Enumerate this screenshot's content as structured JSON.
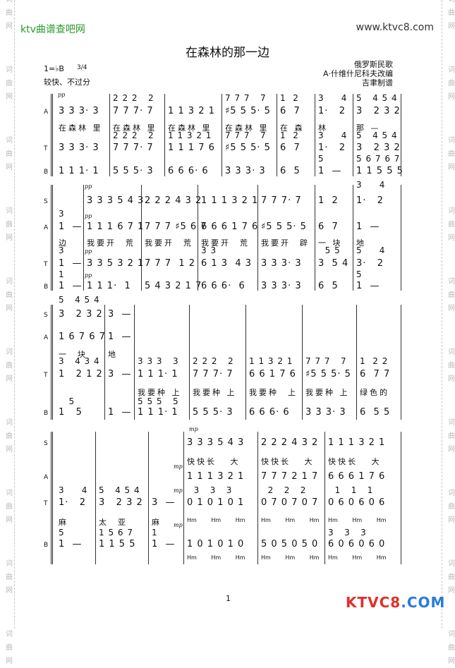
{
  "header": {
    "site_name": "ktv曲谱查吧网",
    "site_url": "www.ktvc8.com",
    "watermark": "词曲网"
  },
  "song": {
    "title": "在森林的那一边",
    "key": "1=♭B",
    "time_sig": "3/4",
    "tempo": "较快、不过分",
    "origin": "俄罗斯民歌",
    "arranger": "A·什维什尼科夫改编",
    "engraver": "吉聿制谱"
  },
  "footer": {
    "page_number": "1",
    "logo": "KTVC8.COM"
  },
  "colors": {
    "site_name": "#2a9a2a",
    "logo_red": "#e0302a",
    "logo_blue": "#2a7ad8"
  },
  "systems": [
    {
      "dynamics": [
        "pp"
      ],
      "rows": [
        {
          "label": "",
          "kind": "sm",
          "measures": [
            "",
            "2 2 2   2",
            "",
            "7 7 7   7",
            "1  2",
            "3     4",
            "5   4 5 4"
          ]
        },
        {
          "label": "A",
          "kind": "note",
          "measures": [
            "3 3 3· 3",
            "7 7 7· 7",
            "1 1 3 2 1",
            "♯5 5 5· 5",
            "6  7",
            "1·   2",
            "3   2 3 2"
          ]
        },
        {
          "label": "",
          "kind": "lyr",
          "measures": [
            "在森林 里",
            "在森林 里",
            "在森林 里",
            "在森林 里",
            "在 森",
            "林",
            "那 —"
          ]
        },
        {
          "label": "",
          "kind": "sm",
          "measures": [
            "",
            "2 2 2   2",
            "1 1 3 2 1",
            "7 7 7   7",
            "1  2",
            "3     4",
            "5   4 5 4"
          ]
        },
        {
          "label": "T",
          "kind": "note",
          "measures": [
            "3 3 3· 3",
            "7 7 7· 7",
            "1 1 1 7 6",
            "♯5 5 5· 5",
            "6  7",
            "1·   2",
            "3   2 3 2"
          ]
        },
        {
          "label": "",
          "kind": "sm",
          "measures": [
            "",
            "",
            "",
            "",
            "",
            "5",
            "5 6 7 6 7"
          ]
        },
        {
          "label": "B",
          "kind": "note",
          "measures": [
            "1 1 1· 1",
            "5 5 5· 3",
            "6 6 6· 6",
            "3 3 3· 3",
            "6  5",
            "1  —",
            "1 1 5 5 5"
          ]
        }
      ]
    },
    {
      "dynamics": [
        "pp",
        "pp",
        "pp",
        "pp"
      ],
      "rows": [
        {
          "label": "",
          "kind": "sm",
          "measures": [
            "",
            "",
            "",
            "",
            "",
            "",
            "3     4"
          ]
        },
        {
          "label": "S",
          "kind": "note",
          "measures": [
            "",
            "3 3 3 5 4 3",
            "2 2 2 4 3 2",
            "1 1 1 3 2 1",
            "7 7 7· 7",
            "1  2",
            "1·   2"
          ]
        },
        {
          "label": "",
          "kind": "sm",
          "measures": [
            "3",
            "",
            "",
            "",
            "",
            "",
            ""
          ]
        },
        {
          "label": "A",
          "kind": "note",
          "measures": [
            "1  —",
            "1 1 1 6 7 1",
            "7 7 7 ♯5 6 7",
            "6 6 6 1 7 6",
            "♯5 5 5· 5",
            "6  7",
            "1  —"
          ]
        },
        {
          "label": "",
          "kind": "lyr",
          "measures": [
            "边",
            "我要开  荒",
            "我要开  荒",
            "我要开  荒",
            "我要开  辟",
            "一 块",
            "地"
          ]
        },
        {
          "label": "",
          "kind": "sm",
          "measures": [
            "3",
            "",
            "",
            "3 3",
            "",
            "  5 5",
            "5     4"
          ]
        },
        {
          "label": "T",
          "kind": "note",
          "measures": [
            "1  —",
            "3 3 5 3 2 1",
            "7 7 7  1 2",
            "6 1 3  4 3",
            "3 3 3· 3",
            "3  5 4",
            "3·   2"
          ]
        },
        {
          "label": "",
          "kind": "sm",
          "measures": [
            "1",
            "",
            "",
            "",
            "",
            "",
            "5"
          ]
        },
        {
          "label": "B",
          "kind": "note",
          "measures": [
            "1  —",
            "1 1 1·  1",
            "5 4 3 2 1 7",
            "6 6 6·  6",
            "3 3 3· 3",
            "6  5",
            "1  —"
          ]
        }
      ]
    },
    {
      "dynamics": [],
      "rows": [
        {
          "label": "",
          "kind": "sm",
          "measures": [
            "5   4 5 4",
            "",
            "",
            "",
            "",
            "",
            ""
          ]
        },
        {
          "label": "S",
          "kind": "note",
          "measures": [
            "3   2 3 2",
            "3  —",
            "",
            "",
            "",
            "",
            ""
          ]
        },
        {
          "label": "A",
          "kind": "note",
          "measures": [
            "1 6 7 6 7",
            "1  —",
            "",
            "",
            "",
            "",
            ""
          ]
        },
        {
          "label": "",
          "kind": "lyr",
          "measures": [
            "一  块",
            "地",
            "",
            "",
            "",
            "",
            ""
          ]
        },
        {
          "label": "",
          "kind": "sm",
          "measures": [
            "3   4 3 4",
            "",
            "3 3 3   3",
            "2 2 2   2",
            "1 1 3 2 1",
            "7 7 7   7",
            "1  2 2"
          ]
        },
        {
          "label": "T",
          "kind": "note",
          "measures": [
            "1   2 1 2",
            "3  —",
            "1 1 1· 1",
            "7 7 7· 7",
            "6 6 1 7 6",
            "♯5 5 5· 5",
            "6  7 7"
          ]
        },
        {
          "label": "",
          "kind": "lyr",
          "measures": [
            "",
            "",
            "我要种 上",
            "我要种 上",
            "我要种  上",
            "我要种 上",
            "绿色的"
          ]
        },
        {
          "label": "",
          "kind": "sm",
          "measures": [
            "   5",
            "",
            "5 5 5   5",
            "",
            "",
            "",
            ""
          ]
        },
        {
          "label": "B",
          "kind": "note",
          "measures": [
            "1   5",
            "1  —",
            "1 1 1· 1",
            "5 5 5· 3",
            "6 6 6· 6",
            "3 3 3· 3",
            "6  5 5"
          ]
        }
      ]
    },
    {
      "dynamics": [
        "mp",
        "mp",
        "mp",
        "mp"
      ],
      "rows": [
        {
          "label": "S",
          "kind": "note",
          "measures": [
            "",
            "",
            "",
            "3 3 3 5 4 3",
            "2 2 2 4 3 2",
            "1 1 1 3 2 1"
          ]
        },
        {
          "label": "",
          "kind": "lyr",
          "measures": [
            "",
            "",
            "",
            "快快长   大",
            "快快长   大",
            "快快长   大"
          ]
        },
        {
          "label": "A",
          "kind": "note",
          "measures": [
            "",
            "",
            "",
            "1 1 1 3 2 1",
            "7 7 7 2 1 7",
            "6 6 6 1 7 6"
          ]
        },
        {
          "label": "",
          "kind": "sm",
          "measures": [
            "3     4",
            "5   4 5 4",
            "",
            "  3   3   3",
            "  2   2   2",
            "  1   1   1"
          ]
        },
        {
          "label": "T",
          "kind": "note",
          "measures": [
            "1·   2",
            "3   2 3 2",
            "3  —",
            "0 1 0 1 0 1",
            "0 7 0 7 0 7",
            "0 6 0 6 0 6"
          ]
        },
        {
          "label": "",
          "kind": "lyr",
          "measures": [
            "麻",
            "太  亚",
            "麻",
            "",
            "",
            ""
          ]
        },
        {
          "label": "",
          "kind": "hm",
          "measures": [
            "",
            "",
            "",
            "Hm Hm Hm",
            "Hm Hm Hm",
            "Hm Hm Hm"
          ]
        },
        {
          "label": "",
          "kind": "sm",
          "measures": [
            "5",
            "1 5 6 7",
            "1",
            "",
            "",
            "3   3   3"
          ]
        },
        {
          "label": "B",
          "kind": "note",
          "measures": [
            "1  —",
            "1 1 5 5",
            "1  —",
            "1 0 1 0 1 0",
            "5 0 5 0 5 0",
            "6 0 6 0 6 0"
          ]
        },
        {
          "label": "",
          "kind": "hm",
          "measures": [
            "",
            "",
            "",
            "Hm Hm Hm",
            "Hm Hm Hm",
            "Hm Hm Hm"
          ]
        }
      ]
    }
  ]
}
